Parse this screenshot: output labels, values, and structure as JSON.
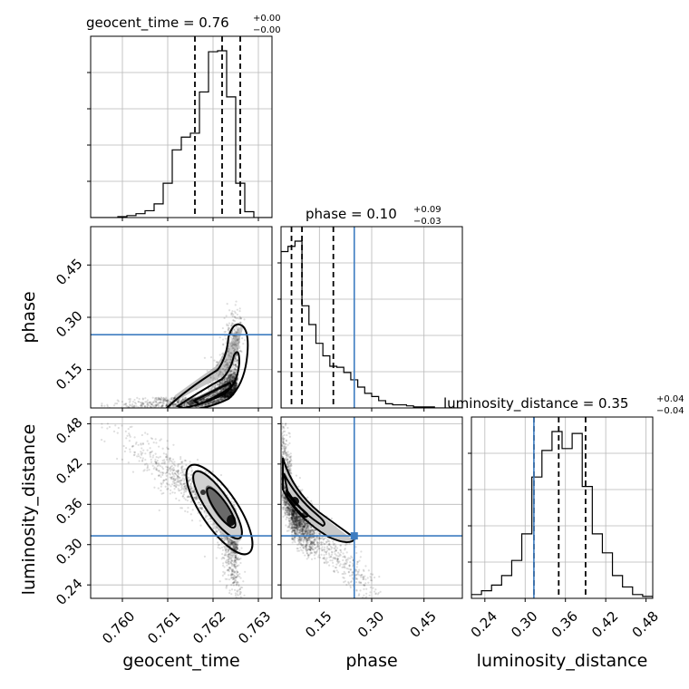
{
  "chart_data": {
    "type": "corner",
    "parameters": [
      "geocent_time",
      "phase",
      "luminosity_distance"
    ],
    "injected_values": {
      "phase": 0.25,
      "luminosity_distance": 0.313
    },
    "injection_color": "#3d7cc0",
    "titles": [
      {
        "text": "geocent_time = 0.76",
        "upper": "+0.00",
        "lower": "−0.00"
      },
      {
        "text": "phase = 0.10",
        "upper": "+0.09",
        "lower": "−0.03"
      },
      {
        "text": "luminosity_distance = 0.35",
        "upper": "+0.04",
        "lower": "−0.04"
      }
    ],
    "axes": {
      "geocent_time": {
        "label": "geocent_time",
        "range": [
          0.7593,
          0.7633
        ],
        "ticks": [
          "0.760",
          "0.761",
          "0.762",
          "0.763"
        ],
        "tick_values": [
          0.76,
          0.761,
          0.762,
          0.763
        ]
      },
      "phase": {
        "label": "phase",
        "range": [
          0.04,
          0.56
        ],
        "ticks": [
          "0.15",
          "0.30",
          "0.45"
        ],
        "tick_values": [
          0.15,
          0.3,
          0.45
        ]
      },
      "luminosity_distance": {
        "label": "luminosity_distance",
        "range": [
          0.22,
          0.49
        ],
        "ticks": [
          "0.24",
          "0.30",
          "0.36",
          "0.42",
          "0.48"
        ],
        "tick_values": [
          0.24,
          0.3,
          0.36,
          0.42,
          0.48
        ]
      }
    },
    "histograms": [
      {
        "param": "geocent_time",
        "bin_edges": [
          0.7593,
          0.7595,
          0.7597,
          0.7599,
          0.7601,
          0.7603,
          0.7605,
          0.7607,
          0.7609,
          0.7611,
          0.7613,
          0.7615,
          0.7617,
          0.7619,
          0.7621,
          0.7623,
          0.7625,
          0.7627,
          0.7629,
          0.7631,
          0.7633
        ],
        "counts": [
          0,
          0,
          0,
          1,
          2,
          4,
          7,
          14,
          35,
          69,
          82,
          86,
          128,
          169,
          170,
          123,
          35,
          6,
          0,
          0
        ],
        "quantiles": [
          0.7616,
          0.7622,
          0.7626
        ]
      },
      {
        "param": "phase",
        "bin_edges": [
          0.04,
          0.06,
          0.08,
          0.1,
          0.12,
          0.14,
          0.16,
          0.18,
          0.2,
          0.22,
          0.24,
          0.26,
          0.28,
          0.3,
          0.32,
          0.34,
          0.36,
          0.38,
          0.4,
          0.42,
          0.44,
          0.46,
          0.48,
          0.5,
          0.52,
          0.54,
          0.56
        ],
        "counts": [
          150,
          155,
          160,
          98,
          80,
          62,
          50,
          40,
          39,
          34,
          27,
          20,
          14,
          11,
          7,
          4,
          3,
          3,
          2,
          1,
          1,
          1,
          0,
          0,
          0,
          0
        ],
        "quantiles": [
          0.07,
          0.1,
          0.19
        ]
      },
      {
        "param": "luminosity_distance",
        "bin_edges": [
          0.22,
          0.235,
          0.25,
          0.265,
          0.28,
          0.295,
          0.31,
          0.325,
          0.34,
          0.355,
          0.37,
          0.385,
          0.4,
          0.415,
          0.43,
          0.445,
          0.46,
          0.475,
          0.49
        ],
        "counts": [
          2,
          4,
          7,
          12,
          20,
          34,
          64,
          78,
          88,
          79,
          87,
          59,
          34,
          24,
          12,
          6,
          2,
          1
        ],
        "quantiles": [
          0.313,
          0.35,
          0.39
        ]
      }
    ],
    "joint_2d": [
      {
        "x": "geocent_time",
        "y": "phase",
        "correlation": "phase rises sharply as geocent_time approaches 0.7625"
      },
      {
        "x": "geocent_time",
        "y": "luminosity_distance",
        "correlation": "negative"
      },
      {
        "x": "phase",
        "y": "luminosity_distance",
        "correlation": "negative"
      }
    ]
  }
}
